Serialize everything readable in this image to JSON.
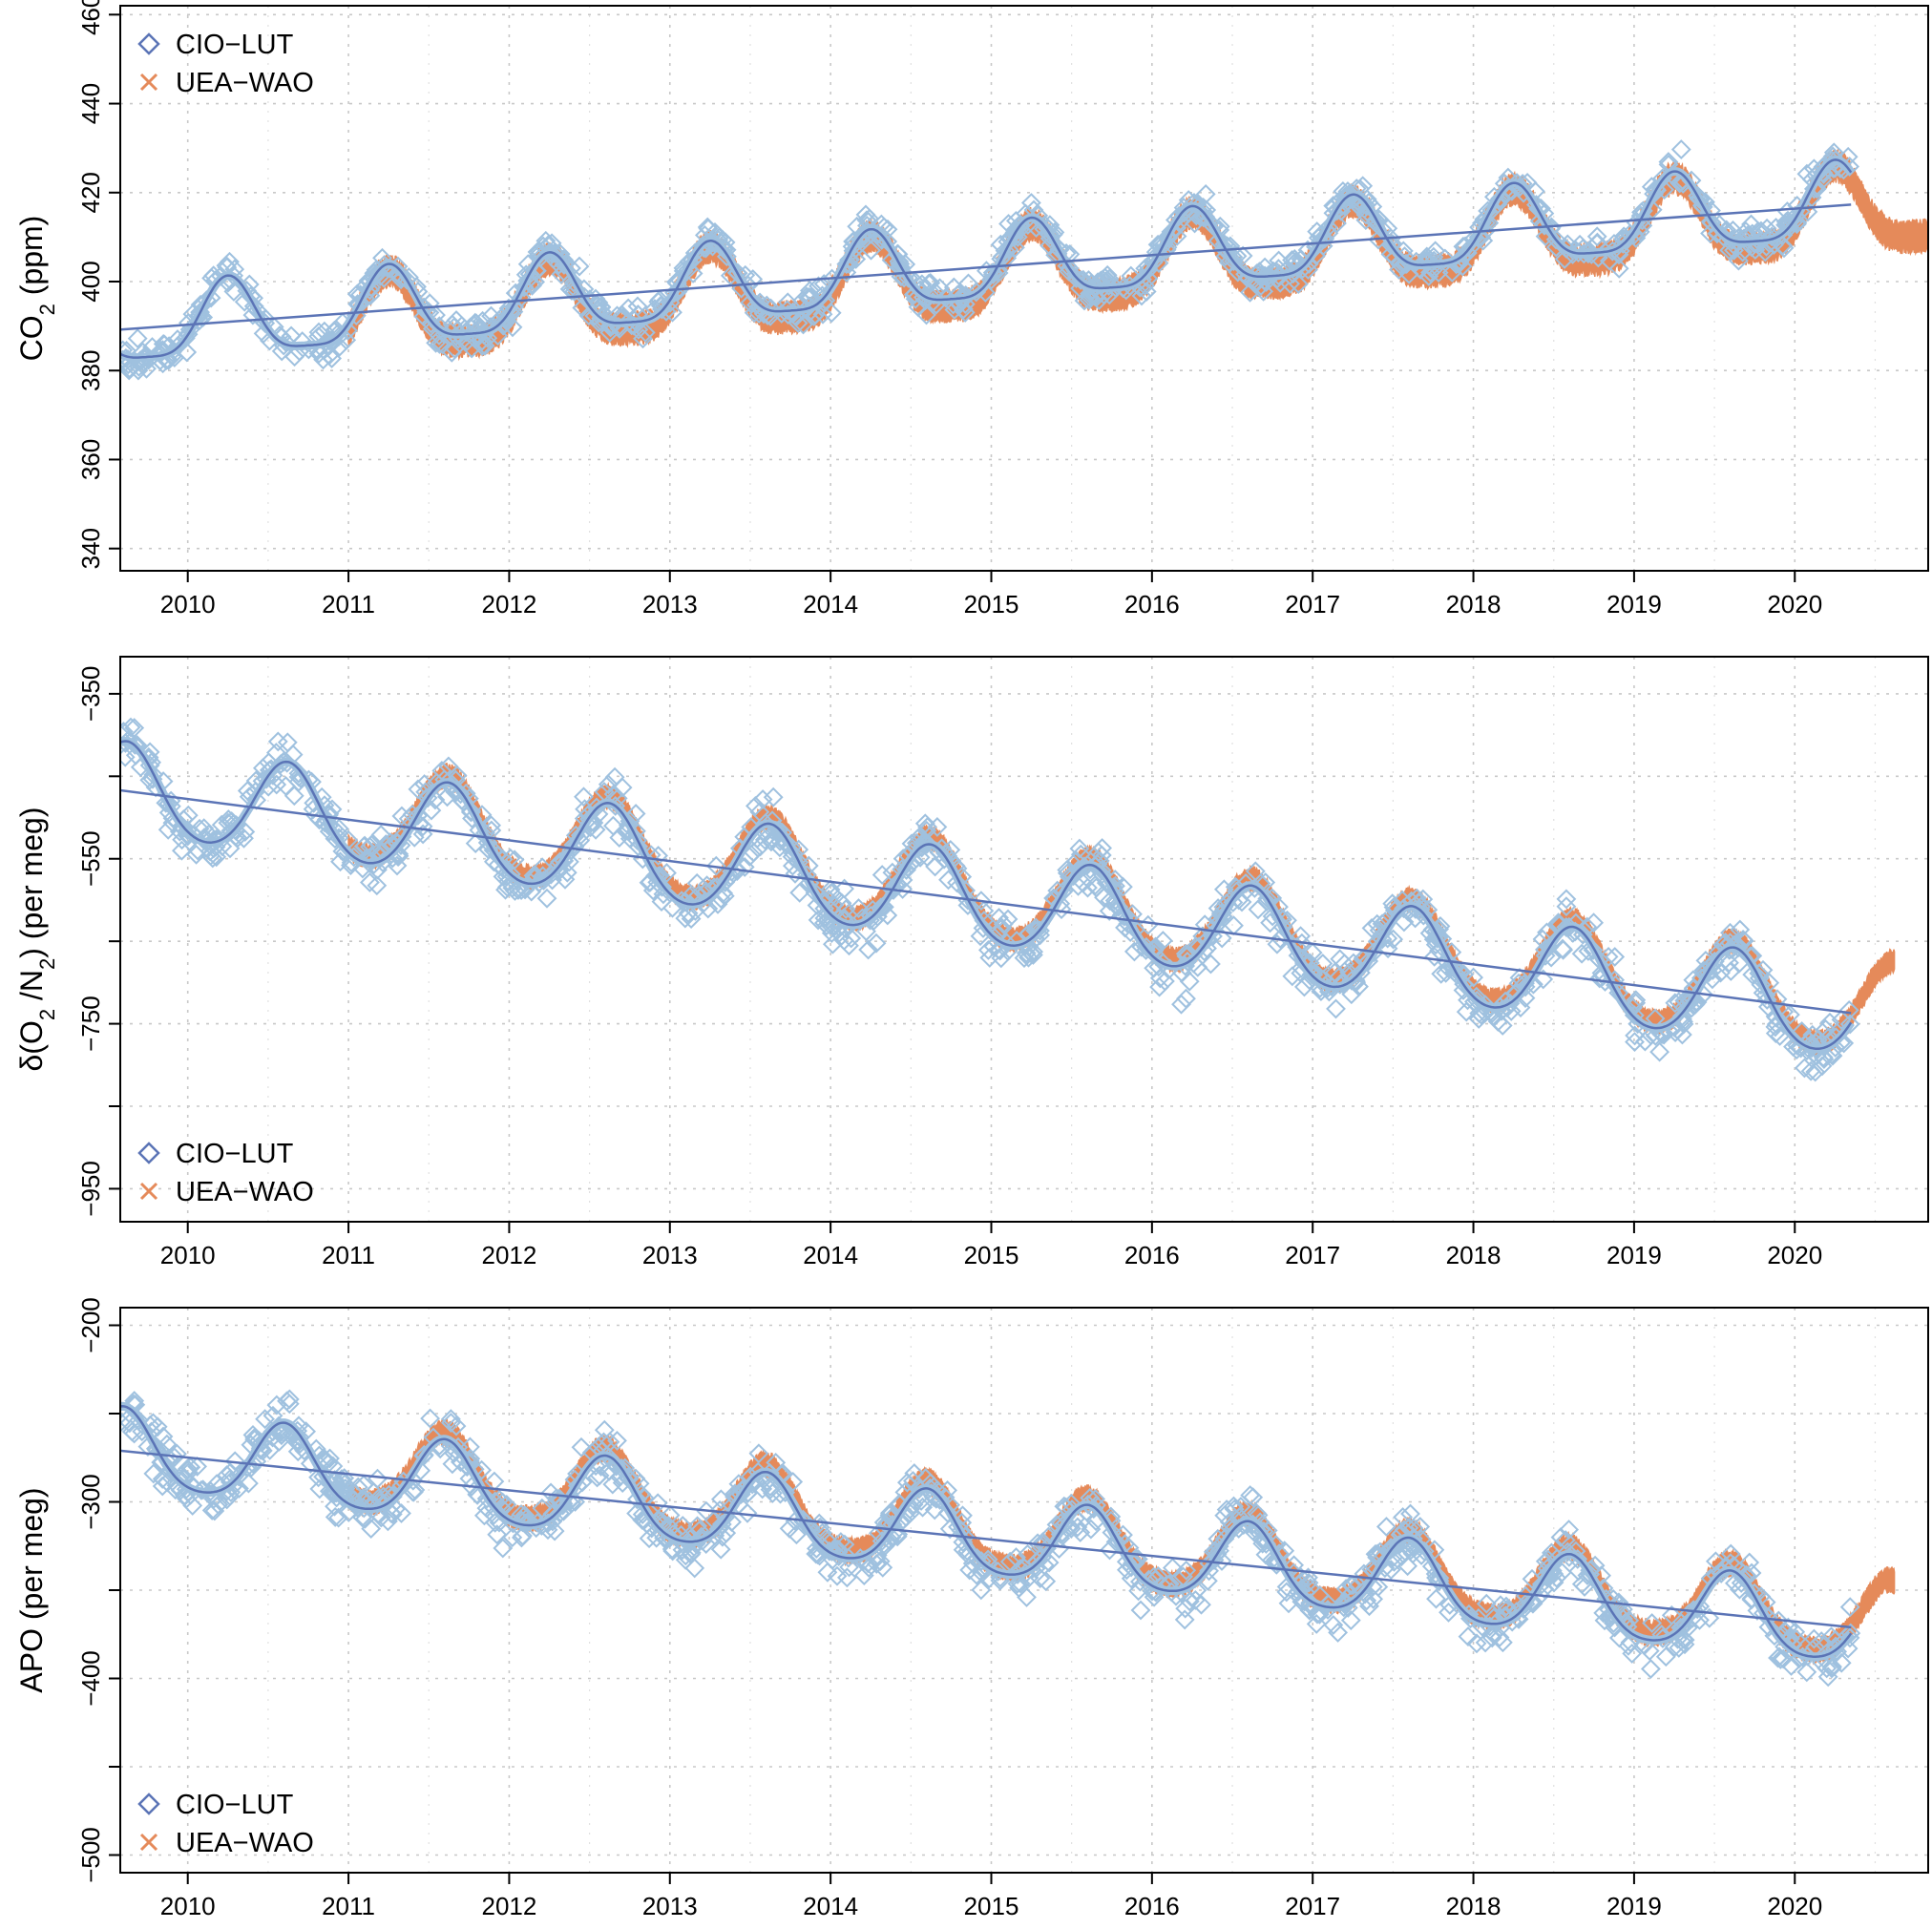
{
  "colors": {
    "cio_lut_line": "#5b74b6",
    "cio_lut_points": "#9fc1df",
    "uea_wao": "#e58a5a",
    "grid": "#c8c8c8",
    "axis": "#000000"
  },
  "chart_data": [
    {
      "type": "scatter",
      "title": "",
      "xlabel": "",
      "ylabel": "CO2 (ppm)",
      "ylabel_parts": {
        "pre": "CO",
        "sub": "2",
        "post": " (ppm)"
      },
      "xlim": [
        2009.58,
        2020.83
      ],
      "ylim": [
        335,
        462
      ],
      "x_ticks": [
        2010,
        2011,
        2012,
        2013,
        2014,
        2015,
        2016,
        2017,
        2018,
        2019,
        2020
      ],
      "x_tick_labels": [
        "2010",
        "2011",
        "2012",
        "2013",
        "2014",
        "2015",
        "2016",
        "2017",
        "2018",
        "2019",
        "2020"
      ],
      "y_ticks": [
        340,
        360,
        380,
        400,
        420,
        440,
        460
      ],
      "y_tick_labels": [
        "340",
        "360",
        "380",
        "400",
        "420",
        "440",
        "460"
      ],
      "grid": true,
      "legend": {
        "position": "top-left",
        "entries": [
          "CIO−LUT",
          "UEA−WAO"
        ]
      },
      "seasonal": {
        "base": 389.0,
        "trend_per_year": 2.6,
        "amplitude": 8.5,
        "phase_peak": 0.25,
        "harmonic2": 0.25
      },
      "cio_lut": {
        "x_range": [
          2009.58,
          2020.35
        ],
        "point_scatter": 3.5
      },
      "uea_wao": {
        "x_range": [
          2011.0,
          2020.83
        ],
        "band_halfwidth": 3.0,
        "offset": -1.5
      },
      "trend_line": {
        "x": [
          2009.58,
          2020.35
        ],
        "y": [
          389.2,
          417.3
        ]
      },
      "series": [
        {
          "name": "CIO−LUT",
          "marker": "diamond",
          "color": "#9fc1df"
        },
        {
          "name": "UEA−WAO",
          "marker": "cross",
          "color": "#e58a5a"
        }
      ]
    },
    {
      "type": "scatter",
      "title": "",
      "xlabel": "",
      "ylabel": "δ(O2 /N2) (per meg)",
      "ylabel_parts": {
        "pre": "δ(O",
        "sub": "2",
        "mid": " /N",
        "sub2": "2",
        "post": ") (per meg)"
      },
      "xlim": [
        2009.58,
        2020.83
      ],
      "ylim": [
        -990,
        -305
      ],
      "x_ticks": [
        2010,
        2011,
        2012,
        2013,
        2014,
        2015,
        2016,
        2017,
        2018,
        2019,
        2020
      ],
      "x_tick_labels": [
        "2010",
        "2011",
        "2012",
        "2013",
        "2014",
        "2015",
        "2016",
        "2017",
        "2018",
        "2019",
        "2020"
      ],
      "y_ticks": [
        -350,
        -450,
        -550,
        -650,
        -750,
        -850,
        -950
      ],
      "y_tick_labels": [
        "−350",
        "",
        "−550",
        "",
        "−750",
        "",
        "−950"
      ],
      "grid": true,
      "legend": {
        "position": "bottom-left",
        "entries": [
          "CIO−LUT",
          "UEA−WAO"
        ]
      },
      "seasonal": {
        "base": -467.0,
        "trend_per_year": -25.0,
        "amplitude": 55.0,
        "phase_peak": 0.62,
        "harmonic2": 0.1
      },
      "cio_lut": {
        "x_range": [
          2009.58,
          2020.35
        ],
        "point_scatter": 30.0
      },
      "uea_wao": {
        "x_range": [
          2011.0,
          2020.62
        ],
        "band_halfwidth": 12.0,
        "offset": 8.0
      },
      "trend_line": {
        "x": [
          2009.58,
          2020.35
        ],
        "y": [
          -467.0,
          -737.0
        ]
      },
      "series": [
        {
          "name": "CIO−LUT",
          "marker": "diamond",
          "color": "#9fc1df"
        },
        {
          "name": "UEA−WAO",
          "marker": "cross",
          "color": "#e58a5a"
        }
      ]
    },
    {
      "type": "scatter",
      "title": "",
      "xlabel": "",
      "ylabel": "APO (per meg)",
      "ylabel_parts": {
        "pre": "APO (per meg)",
        "sub": "",
        "post": ""
      },
      "xlim": [
        2009.58,
        2020.83
      ],
      "ylim": [
        -510,
        -190
      ],
      "x_ticks": [
        2010,
        2011,
        2012,
        2013,
        2014,
        2015,
        2016,
        2017,
        2018,
        2019,
        2020
      ],
      "x_tick_labels": [
        "2010",
        "2011",
        "2012",
        "2013",
        "2014",
        "2015",
        "2016",
        "2017",
        "2018",
        "2019",
        "2020"
      ],
      "y_ticks": [
        -200,
        -250,
        -300,
        -350,
        -400,
        -450,
        -500
      ],
      "y_tick_labels": [
        "−200",
        "",
        "−300",
        "",
        "−400",
        "",
        "−500"
      ],
      "grid": true,
      "legend": {
        "position": "bottom-left",
        "entries": [
          "CIO−LUT",
          "UEA−WAO"
        ]
      },
      "seasonal": {
        "base": -271.0,
        "trend_per_year": -9.3,
        "amplitude": 22.0,
        "phase_peak": 0.6,
        "harmonic2": 0.15
      },
      "cio_lut": {
        "x_range": [
          2009.58,
          2020.35
        ],
        "point_scatter": 14.0
      },
      "uea_wao": {
        "x_range": [
          2011.0,
          2020.62
        ],
        "band_halfwidth": 6.0,
        "offset": 4.0
      },
      "trend_line": {
        "x": [
          2009.58,
          2020.35
        ],
        "y": [
          -271.0,
          -371.0
        ]
      },
      "series": [
        {
          "name": "CIO−LUT",
          "marker": "diamond",
          "color": "#9fc1df"
        },
        {
          "name": "UEA−WAO",
          "marker": "cross",
          "color": "#e58a5a"
        }
      ]
    }
  ]
}
